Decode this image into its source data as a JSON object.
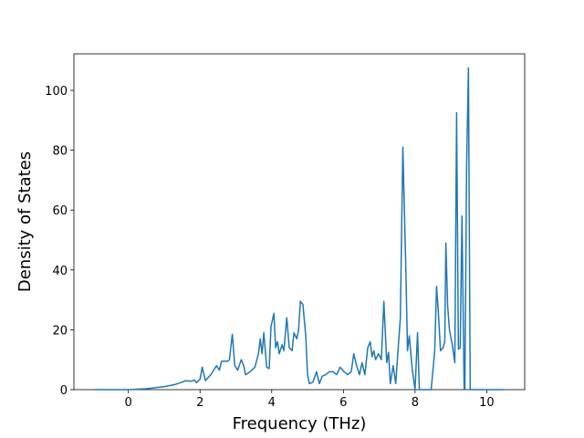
{
  "chart_data": {
    "type": "line",
    "x_label": "Frequency (THz)",
    "y_label": "Density of States",
    "x": [
      -0.95,
      0,
      0.5,
      1.0,
      1.3,
      1.5,
      1.6,
      1.75,
      1.85,
      1.9,
      2.0,
      2.06,
      2.15,
      2.3,
      2.46,
      2.54,
      2.6,
      2.77,
      2.82,
      2.9,
      2.97,
      3.05,
      3.15,
      3.22,
      3.27,
      3.4,
      3.53,
      3.63,
      3.68,
      3.73,
      3.78,
      3.86,
      3.93,
      3.98,
      4.06,
      4.11,
      4.16,
      4.21,
      4.29,
      4.34,
      4.42,
      4.49,
      4.57,
      4.62,
      4.7,
      4.75,
      4.8,
      4.87,
      4.95,
      5.0,
      5.05,
      5.15,
      5.25,
      5.33,
      5.41,
      5.51,
      5.61,
      5.71,
      5.81,
      5.91,
      6.02,
      6.12,
      6.22,
      6.29,
      6.37,
      6.45,
      6.52,
      6.6,
      6.68,
      6.75,
      6.8,
      6.85,
      6.9,
      6.98,
      7.06,
      7.13,
      7.21,
      7.26,
      7.31,
      7.39,
      7.46,
      7.59,
      7.66,
      7.74,
      7.79,
      7.84,
      7.92,
      8.0,
      8.07,
      8.12,
      8.45,
      8.55,
      8.6,
      8.65,
      8.71,
      8.78,
      8.83,
      8.86,
      8.91,
      8.96,
      9.04,
      9.11,
      9.16,
      9.21,
      9.26,
      9.31,
      9.37,
      9.39,
      9.44,
      9.49,
      9.54,
      10.46
    ],
    "series": [
      {
        "color": "#1f77b4",
        "values": [
          0,
          0,
          0.3,
          1,
          1.7,
          2.5,
          3,
          2.8,
          3.2,
          2.3,
          3.5,
          7.5,
          3,
          5,
          8,
          6.5,
          9.5,
          9.5,
          10,
          18.5,
          8,
          6.5,
          10,
          8,
          5,
          6,
          7.5,
          12,
          17,
          12,
          19,
          7.5,
          7,
          21,
          25.5,
          14,
          16,
          12,
          15,
          13,
          24,
          14,
          13,
          19,
          17,
          20,
          29.5,
          28.5,
          18,
          5,
          2,
          2.5,
          6,
          2,
          4.5,
          5,
          6,
          6,
          5,
          7.5,
          6,
          5,
          6,
          12,
          8,
          5,
          9,
          5,
          14,
          16,
          11,
          13,
          10,
          12,
          10,
          29.5,
          9,
          12.5,
          2,
          8,
          2,
          24,
          81,
          42,
          13,
          18,
          7,
          0,
          19,
          0,
          0,
          13,
          34.5,
          26,
          13,
          14,
          16,
          49,
          28,
          20,
          15,
          9,
          92.5,
          13.5,
          14,
          58,
          0,
          0,
          75,
          107.5,
          0,
          0
        ]
      }
    ],
    "xlim": [
      -1.52,
      11.06
    ],
    "ylim": [
      0,
      112.2
    ],
    "xticks": [
      0,
      2,
      4,
      6,
      8,
      10
    ],
    "yticks": [
      0,
      20,
      40,
      60,
      80,
      100
    ]
  }
}
